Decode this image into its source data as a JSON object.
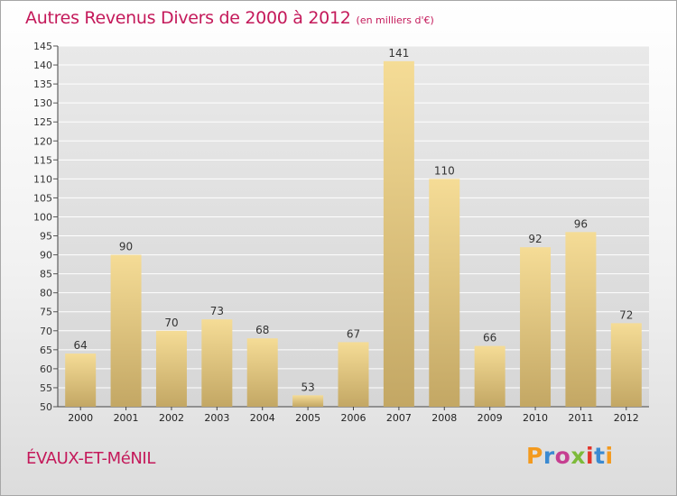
{
  "header": {
    "title": "Autres Revenus Divers de 2000 à 2012",
    "subtitle": "(en milliers d'€)"
  },
  "footer": {
    "commune": "ÉVAUX-ET-MéNIL",
    "brand": "Proxiti",
    "brand_colors": [
      "#f39a1e",
      "#3b8ad1",
      "#c63f91",
      "#7dba3a",
      "#e2342b",
      "#3b8ad1",
      "#f39a1e"
    ]
  },
  "colors": {
    "title": "#c4195a",
    "bar_light": "#f5dc96",
    "bar_dark": "#c3a764",
    "grid": "#ffffff",
    "plot_bg": "#dcdcdc"
  },
  "chart_data": {
    "type": "bar",
    "categories": [
      "2000",
      "2001",
      "2002",
      "2003",
      "2004",
      "2005",
      "2006",
      "2007",
      "2008",
      "2009",
      "2010",
      "2011",
      "2012"
    ],
    "values": [
      64,
      90,
      70,
      73,
      68,
      53,
      67,
      141,
      110,
      66,
      92,
      96,
      72
    ],
    "ylim": [
      50,
      145
    ],
    "yticks": [
      50,
      55,
      60,
      65,
      70,
      75,
      80,
      85,
      90,
      95,
      100,
      105,
      110,
      115,
      120,
      125,
      130,
      135,
      140,
      145
    ],
    "grid": true,
    "data_labels": true
  }
}
